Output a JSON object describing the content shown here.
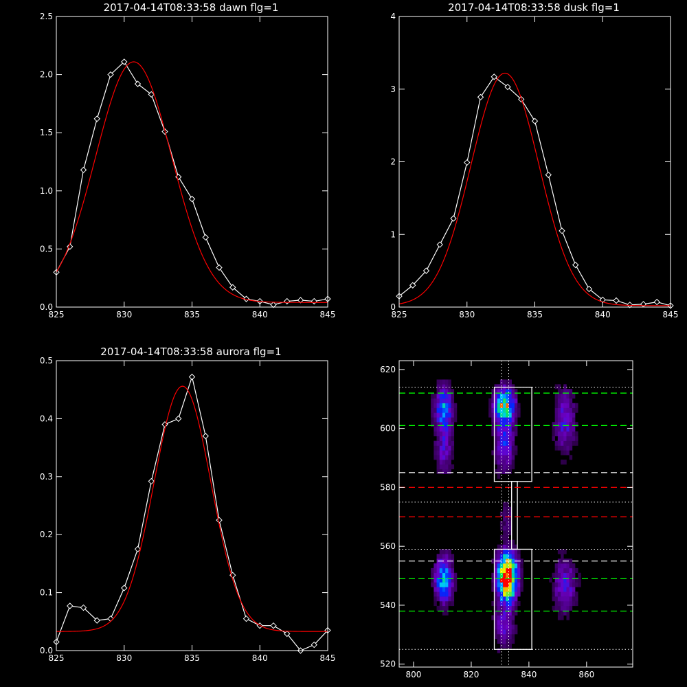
{
  "chart_data": [
    {
      "type": "line",
      "title": "2017-04-14T08:33:58 dawn flg=1",
      "xlim": [
        825,
        845
      ],
      "ylim": [
        0,
        2.5
      ],
      "xticks": [
        "825",
        "830",
        "835",
        "840",
        "845"
      ],
      "yticks": [
        "0.0",
        "0.5",
        "1.0",
        "1.5",
        "2.0",
        "2.5"
      ],
      "xtick_values": [
        825,
        830,
        835,
        840,
        845
      ],
      "ytick_values": [
        0,
        0.5,
        1.0,
        1.5,
        2.0,
        2.5
      ],
      "series": [
        {
          "color": "#ffffff",
          "marker": "diamond",
          "x": [
            825,
            826,
            827,
            828,
            829,
            830,
            831,
            832,
            833,
            834,
            835,
            836,
            837,
            838,
            839,
            840,
            841,
            842,
            843,
            844,
            845
          ],
          "y": [
            0.3,
            0.52,
            1.18,
            1.62,
            2.0,
            2.11,
            1.92,
            1.83,
            1.51,
            1.12,
            0.93,
            0.6,
            0.34,
            0.17,
            0.07,
            0.05,
            0.02,
            0.05,
            0.06,
            0.05,
            0.07
          ]
        },
        {
          "color": "#ff0000",
          "fit": {
            "kind": "gauss",
            "a": 2.07,
            "mu": 830.7,
            "sigma": 2.8,
            "c": 0.04
          }
        }
      ]
    },
    {
      "type": "line",
      "title": "2017-04-14T08:33:58 dusk flg=1",
      "xlim": [
        825,
        845
      ],
      "ylim": [
        0,
        4
      ],
      "xticks": [
        "825",
        "830",
        "835",
        "840",
        "845"
      ],
      "yticks": [
        "0",
        "1",
        "2",
        "3",
        "4"
      ],
      "xtick_values": [
        825,
        830,
        835,
        840,
        845
      ],
      "ytick_values": [
        0,
        1,
        2,
        3,
        4
      ],
      "series": [
        {
          "color": "#ffffff",
          "marker": "diamond",
          "x": [
            825,
            826,
            827,
            828,
            829,
            830,
            831,
            832,
            833,
            834,
            835,
            836,
            837,
            838,
            839,
            840,
            841,
            842,
            843,
            844,
            845
          ],
          "y": [
            0.15,
            0.3,
            0.5,
            0.86,
            1.22,
            1.99,
            2.89,
            3.17,
            3.03,
            2.86,
            2.56,
            1.82,
            1.05,
            0.58,
            0.25,
            0.1,
            0.09,
            0.03,
            0.04,
            0.07,
            0.02
          ]
        },
        {
          "color": "#ff0000",
          "fit": {
            "kind": "gauss",
            "a": 3.2,
            "mu": 832.8,
            "sigma": 2.5,
            "c": 0.02
          }
        }
      ]
    },
    {
      "type": "line",
      "title": "2017-04-14T08:33:58 aurora flg=1",
      "xlim": [
        825,
        845
      ],
      "ylim": [
        0,
        0.5
      ],
      "xticks": [
        "825",
        "830",
        "835",
        "840",
        "845"
      ],
      "yticks": [
        "0.0",
        "0.1",
        "0.2",
        "0.3",
        "0.4",
        "0.5"
      ],
      "xtick_values": [
        825,
        830,
        835,
        840,
        845
      ],
      "ytick_values": [
        0,
        0.1,
        0.2,
        0.3,
        0.4,
        0.5
      ],
      "series": [
        {
          "color": "#ffffff",
          "marker": "diamond",
          "x": [
            825,
            826,
            827,
            828,
            829,
            830,
            831,
            832,
            833,
            834,
            835,
            836,
            837,
            838,
            839,
            840,
            841,
            842,
            843,
            844,
            845
          ],
          "y": [
            0.015,
            0.077,
            0.074,
            0.052,
            0.055,
            0.108,
            0.175,
            0.292,
            0.39,
            0.4,
            0.472,
            0.37,
            0.225,
            0.13,
            0.055,
            0.043,
            0.043,
            0.029,
            0.0,
            0.01,
            0.035
          ]
        },
        {
          "color": "#ff0000",
          "fit": {
            "kind": "gauss",
            "a": 0.423,
            "mu": 834.3,
            "sigma": 2.1,
            "c": 0.033
          }
        }
      ]
    },
    {
      "type": "heatmap",
      "title": "",
      "xlim": [
        795,
        876
      ],
      "ylim": [
        519,
        623
      ],
      "xticks": [
        "800",
        "820",
        "840",
        "860"
      ],
      "yticks": [
        "520",
        "540",
        "560",
        "580",
        "600",
        "620"
      ],
      "xtick_values": [
        800,
        820,
        840,
        860
      ],
      "ytick_values": [
        520,
        540,
        560,
        580,
        600,
        620
      ],
      "blobs": [
        {
          "x": 832,
          "y": 547,
          "sx": 2.2,
          "sy": 4.5,
          "amp": 1.0
        },
        {
          "x": 832,
          "y": 553,
          "sx": 2.2,
          "sy": 3.5,
          "amp": 0.55
        },
        {
          "x": 831,
          "y": 607,
          "sx": 2.3,
          "sy": 4.0,
          "amp": 0.72
        },
        {
          "x": 831,
          "y": 594,
          "sx": 2.2,
          "sy": 6.0,
          "amp": 0.32
        },
        {
          "x": 810,
          "y": 548,
          "sx": 2.0,
          "sy": 5.0,
          "amp": 0.55
        },
        {
          "x": 810,
          "y": 606,
          "sx": 2.0,
          "sy": 5.0,
          "amp": 0.48
        },
        {
          "x": 810,
          "y": 592,
          "sx": 2.0,
          "sy": 6.0,
          "amp": 0.22
        },
        {
          "x": 852,
          "y": 546,
          "sx": 2.5,
          "sy": 6.0,
          "amp": 0.28
        },
        {
          "x": 852,
          "y": 602,
          "sx": 2.5,
          "sy": 7.0,
          "amp": 0.26
        },
        {
          "x": 832,
          "y": 568,
          "sx": 2.0,
          "sy": 5.0,
          "amp": 0.1
        },
        {
          "x": 831,
          "y": 532,
          "sx": 2.5,
          "sy": 5.0,
          "amp": 0.22
        }
      ],
      "hlines": [
        {
          "y": 612,
          "color": "#00ff00",
          "style": "dash"
        },
        {
          "y": 601,
          "color": "#00ff00",
          "style": "dash"
        },
        {
          "y": 585,
          "color": "#ffffff",
          "style": "dash"
        },
        {
          "y": 580,
          "color": "#ff0000",
          "style": "dash"
        },
        {
          "y": 570,
          "color": "#ff0000",
          "style": "dash"
        },
        {
          "y": 555,
          "color": "#ffffff",
          "style": "dash"
        },
        {
          "y": 549,
          "color": "#00ff00",
          "style": "dash"
        },
        {
          "y": 538,
          "color": "#00ff00",
          "style": "dash"
        },
        {
          "y": 614,
          "color": "#ffffff",
          "style": "dot"
        },
        {
          "y": 575,
          "color": "#ffffff",
          "style": "dot"
        },
        {
          "y": 559,
          "color": "#ffffff",
          "style": "dot"
        },
        {
          "y": 525,
          "color": "#ffffff",
          "style": "dot"
        }
      ],
      "vlines": [
        {
          "x": 830.5,
          "color": "#ffffff",
          "style": "dot"
        },
        {
          "x": 833.0,
          "color": "#ffffff",
          "style": "dot"
        }
      ],
      "boxes": [
        {
          "x0": 828,
          "x1": 841,
          "y0": 582,
          "y1": 614
        },
        {
          "x0": 834,
          "x1": 836,
          "y0": 559,
          "y1": 582
        },
        {
          "x0": 828,
          "x1": 841,
          "y0": 525,
          "y1": 559
        }
      ]
    }
  ]
}
